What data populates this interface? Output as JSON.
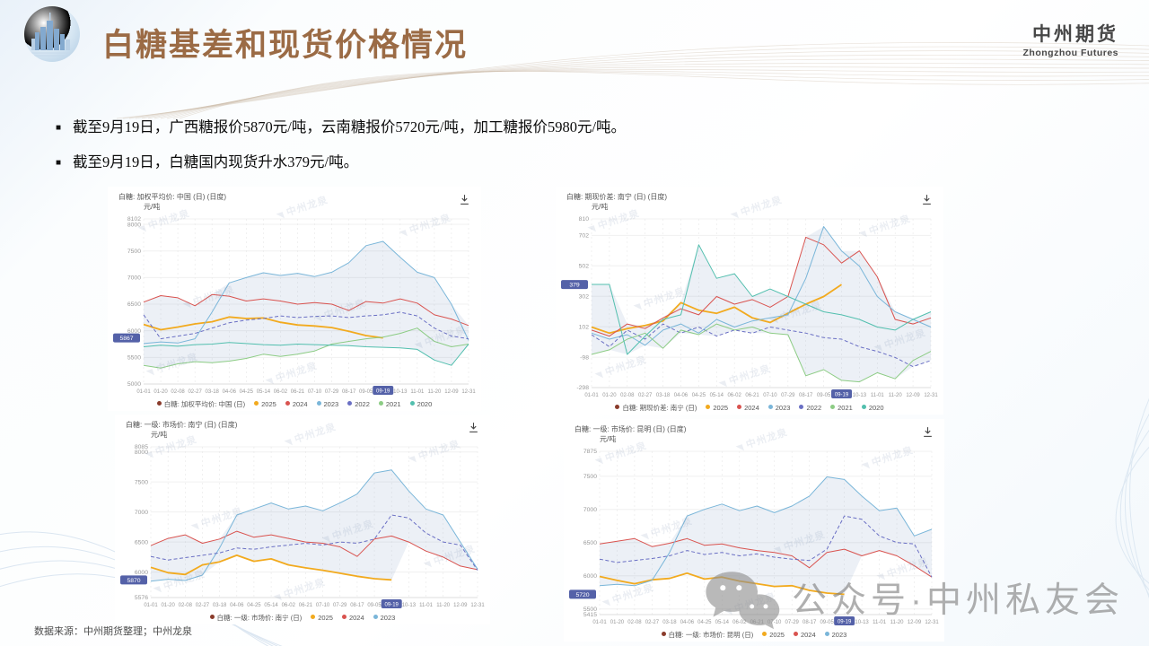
{
  "slide": {
    "title": "白糖基差和现货价格情况",
    "brand": {
      "cn": "中州期货",
      "en": "Zhongzhou Futures"
    },
    "bullets": [
      "截至9月19日，广西糖报价5870元/吨，云南糖报价5720元/吨，加工糖报价5980元/吨。",
      "截至9月19日，白糖国内现货升水379元/吨。"
    ],
    "source_note": "数据来源：中州期货整理；中州龙泉",
    "wechat_watermark": "公众号·中州私友会",
    "panel_watermark": "中州龙泉"
  },
  "colors": {
    "accent_indigo": "#5461A8",
    "title_brown": "#9B6B45",
    "band": "#8BA0C8",
    "legend_first_dot": "#8A3B2B"
  },
  "chart_data": [
    {
      "type": "line",
      "title": "白糖: 加权平均价: 中国 (日) (日度)",
      "legend_series_label": "白糖: 加权平均价: 中国 (日)",
      "ylabel": "元/吨",
      "ylim": [
        5000,
        8102
      ],
      "yticks": [
        8102,
        8000,
        7500,
        7000,
        6500,
        6000,
        5500,
        5000
      ],
      "current_value": 5867,
      "current_date": "09-19",
      "highlight_tick_index": 14,
      "x_ticks": [
        "01-01",
        "01-20",
        "02-08",
        "02-27",
        "03-18",
        "04-06",
        "04-25",
        "05-14",
        "06-02",
        "06-21",
        "07-10",
        "07-29",
        "08-17",
        "09-05",
        "09-19",
        "10-13",
        "11-01",
        "11-20",
        "12-09",
        "12-31"
      ],
      "series": [
        {
          "name": "2025",
          "color": "#F2AA1E",
          "values": [
            6120,
            6020,
            6070,
            6130,
            6170,
            6260,
            6230,
            6240,
            6160,
            6110,
            6090,
            6060,
            5990,
            5910,
            5867,
            null,
            null,
            null,
            null,
            null
          ]
        },
        {
          "name": "2024",
          "color": "#D9534F",
          "values": [
            6540,
            6660,
            6620,
            6470,
            6680,
            6650,
            6560,
            6600,
            6560,
            6500,
            6530,
            6500,
            6380,
            6550,
            6520,
            6600,
            6520,
            6300,
            6220,
            6100
          ]
        },
        {
          "name": "2023",
          "color": "#7AB6D9",
          "values": [
            5760,
            5790,
            5770,
            5850,
            6350,
            6900,
            7000,
            7090,
            7040,
            7080,
            7020,
            7100,
            7280,
            7600,
            7680,
            7380,
            7100,
            7000,
            6500,
            5820
          ]
        },
        {
          "name": "2022",
          "color": "#6A6FC4",
          "dash": true,
          "values": [
            6300,
            5850,
            5900,
            5950,
            6050,
            6150,
            6200,
            6230,
            6280,
            6250,
            6270,
            6280,
            6250,
            6280,
            6300,
            6350,
            6280,
            6050,
            5900,
            5850
          ]
        },
        {
          "name": "2021",
          "color": "#8CCC84",
          "values": [
            5350,
            5300,
            5380,
            5420,
            5400,
            5430,
            5480,
            5560,
            5520,
            5560,
            5620,
            5750,
            5800,
            5850,
            5880,
            5950,
            6050,
            5800,
            5700,
            5750
          ]
        },
        {
          "name": "2020",
          "color": "#52BFAE",
          "values": [
            5700,
            5730,
            5710,
            5740,
            5750,
            5780,
            5760,
            5740,
            5730,
            5750,
            5740,
            5730,
            5720,
            5700,
            5690,
            5680,
            5650,
            5450,
            5350,
            5750
          ]
        }
      ]
    },
    {
      "type": "line",
      "title": "白糖: 期现价差: 南宁 (日) (日度)",
      "legend_series_label": "白糖: 期现价差: 南宁 (日)",
      "ylabel": "元/吨",
      "ylim": [
        -298,
        810
      ],
      "yticks": [
        810,
        702,
        502,
        302,
        102,
        -98,
        -298
      ],
      "current_value": 379,
      "current_date": "09-19",
      "highlight_tick_index": 14,
      "x_ticks": [
        "01-01",
        "01-20",
        "02-08",
        "02-27",
        "03-18",
        "04-06",
        "04-25",
        "05-14",
        "06-02",
        "06-21",
        "07-10",
        "07-29",
        "08-17",
        "09-05",
        "09-19",
        "10-13",
        "11-01",
        "11-20",
        "12-09",
        "12-31"
      ],
      "series": [
        {
          "name": "2025",
          "color": "#F2AA1E",
          "values": [
            100,
            60,
            90,
            110,
            140,
            260,
            210,
            190,
            230,
            160,
            130,
            190,
            250,
            300,
            379,
            null,
            null,
            null,
            null,
            null
          ]
        },
        {
          "name": "2024",
          "color": "#D9534F",
          "values": [
            80,
            40,
            120,
            90,
            160,
            220,
            180,
            300,
            250,
            280,
            230,
            300,
            690,
            640,
            520,
            600,
            430,
            150,
            120,
            160
          ]
        },
        {
          "name": "2023",
          "color": "#7AB6D9",
          "values": [
            60,
            20,
            50,
            -20,
            80,
            120,
            60,
            150,
            100,
            140,
            160,
            180,
            420,
            760,
            600,
            500,
            300,
            200,
            150,
            100
          ]
        },
        {
          "name": "2022",
          "color": "#6A6FC4",
          "dash": true,
          "values": [
            50,
            -30,
            80,
            20,
            120,
            60,
            100,
            40,
            80,
            60,
            100,
            80,
            60,
            30,
            20,
            -30,
            -60,
            -100,
            -160,
            -120
          ]
        },
        {
          "name": "2021",
          "color": "#8CCC84",
          "values": [
            -80,
            -50,
            20,
            60,
            -40,
            80,
            50,
            120,
            80,
            100,
            60,
            50,
            -220,
            -180,
            -250,
            -260,
            -200,
            -240,
            -120,
            -60
          ]
        },
        {
          "name": "2020",
          "color": "#52BFAE",
          "values": [
            380,
            380,
            -80,
            40,
            150,
            180,
            640,
            420,
            450,
            300,
            350,
            300,
            250,
            200,
            180,
            150,
            100,
            80,
            150,
            200
          ]
        }
      ]
    },
    {
      "type": "line",
      "title": "白糖: 一级: 市场价: 南宁 (日) (日度)",
      "legend_series_label": "白糖: 一级: 市场价: 南宁 (日)",
      "ylabel": "元/吨",
      "ylim": [
        5576,
        8085
      ],
      "yticks": [
        8085,
        8000,
        7500,
        7000,
        6500,
        6000,
        5576
      ],
      "current_value": 5870,
      "current_date": "09-19",
      "highlight_tick_index": 14,
      "x_ticks": [
        "01-01",
        "01-20",
        "02-08",
        "02-27",
        "03-18",
        "04-06",
        "04-25",
        "05-14",
        "06-02",
        "06-21",
        "07-10",
        "07-29",
        "08-17",
        "09-05",
        "09-19",
        "10-13",
        "11-01",
        "11-20",
        "12-09",
        "12-31"
      ],
      "series": [
        {
          "name": "2025",
          "color": "#F2AA1E",
          "values": [
            6080,
            5990,
            5960,
            6120,
            6170,
            6280,
            6180,
            6220,
            6120,
            6070,
            6030,
            5980,
            5930,
            5890,
            5870,
            null,
            null,
            null,
            null,
            null
          ]
        },
        {
          "name": "2024",
          "color": "#D9534F",
          "values": [
            6440,
            6560,
            6620,
            6480,
            6550,
            6680,
            6580,
            6620,
            6560,
            6500,
            6480,
            6420,
            6260,
            6550,
            6600,
            6500,
            6350,
            6250,
            6100,
            6040
          ]
        },
        {
          "name": "2023",
          "color": "#7AB6D9",
          "values": [
            5850,
            5880,
            5860,
            5950,
            6400,
            6950,
            7050,
            7150,
            7050,
            7100,
            7020,
            7150,
            7300,
            7650,
            7700,
            7350,
            7050,
            6950,
            6500,
            6050
          ]
        },
        {
          "name": "unlabeled_dashed",
          "color": "#6A6FC4",
          "dash": true,
          "legend": false,
          "values": [
            6260,
            6200,
            6240,
            6280,
            6320,
            6400,
            6380,
            6420,
            6450,
            6480,
            6450,
            6500,
            6480,
            6550,
            6950,
            6900,
            6650,
            6500,
            6450,
            6030
          ]
        }
      ]
    },
    {
      "type": "line",
      "title": "白糖: 一级: 市场价: 昆明 (日) (日度)",
      "legend_series_label": "白糖: 一级: 市场价: 昆明 (日)",
      "ylabel": "元/吨",
      "ylim": [
        5415,
        7875
      ],
      "yticks": [
        7875,
        7500,
        7000,
        6500,
        6000,
        5500,
        5415
      ],
      "current_value": 5720,
      "current_date": "09-19",
      "highlight_tick_index": 14,
      "x_ticks": [
        "01-01",
        "01-20",
        "02-08",
        "02-27",
        "03-18",
        "04-06",
        "04-25",
        "05-14",
        "06-02",
        "06-21",
        "07-10",
        "07-29",
        "08-17",
        "09-05",
        "09-19",
        "10-13",
        "11-01",
        "11-20",
        "12-09",
        "12-31"
      ],
      "series": [
        {
          "name": "2025",
          "color": "#F2AA1E",
          "values": [
            5990,
            5930,
            5880,
            5940,
            5960,
            6040,
            5950,
            5980,
            5920,
            5880,
            5840,
            5850,
            5780,
            5740,
            5720,
            null,
            null,
            null,
            null,
            null
          ]
        },
        {
          "name": "2024",
          "color": "#D9534F",
          "values": [
            6480,
            6520,
            6560,
            6440,
            6490,
            6560,
            6460,
            6480,
            6420,
            6380,
            6350,
            6300,
            6120,
            6350,
            6400,
            6300,
            6380,
            6300,
            6150,
            5980
          ]
        },
        {
          "name": "2023",
          "color": "#7AB6D9",
          "values": [
            5850,
            5870,
            5850,
            5930,
            6350,
            6900,
            7000,
            7080,
            6980,
            7050,
            6950,
            7050,
            7200,
            7490,
            7450,
            7200,
            6980,
            7020,
            6600,
            6700
          ]
        },
        {
          "name": "unlabeled_dashed",
          "color": "#6A6FC4",
          "dash": true,
          "legend": false,
          "values": [
            6250,
            6200,
            6230,
            6260,
            6300,
            6380,
            6320,
            6350,
            6300,
            6330,
            6280,
            6250,
            6230,
            6400,
            6900,
            6850,
            6600,
            6500,
            6480,
            5980
          ]
        }
      ]
    }
  ]
}
